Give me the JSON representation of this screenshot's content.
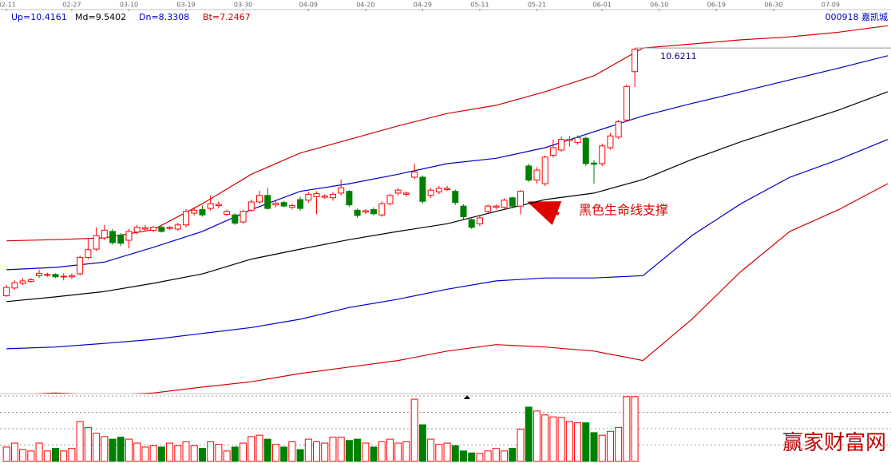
{
  "header": {
    "indicators": [
      {
        "text": "Up=10.4161",
        "color": "#0000c8"
      },
      {
        "text": "Md=9.5402",
        "color": "#000000"
      },
      {
        "text": "Dn=8.3308",
        "color": "#0000c8"
      },
      {
        "text": "Bt=7.2467",
        "color": "#c80000"
      }
    ],
    "stock": "000918 嘉凯城"
  },
  "chart_data": {
    "type": "candlestick",
    "xlim": [
      -0.8,
      108.4
    ],
    "xticks": [
      {
        "value": 0,
        "label": "02-11"
      },
      {
        "value": 8,
        "label": "02-27"
      },
      {
        "value": 15,
        "label": "03-10"
      },
      {
        "value": 22,
        "label": "03-19"
      },
      {
        "value": 29,
        "label": "03-30"
      },
      {
        "value": 37,
        "label": "04-09"
      },
      {
        "value": 44,
        "label": "04-20"
      },
      {
        "value": 51,
        "label": "04-29"
      },
      {
        "value": 58,
        "label": "05-11"
      },
      {
        "value": 65,
        "label": "05-21"
      },
      {
        "value": 73,
        "label": "06-01"
      },
      {
        "value": 80,
        "label": "06-10"
      },
      {
        "value": 87,
        "label": "06-19"
      },
      {
        "value": 94,
        "label": "06-30"
      },
      {
        "value": 101,
        "label": "07-09"
      }
    ],
    "ylim": [
      4.76,
      11.3
    ],
    "up_color": "#ff0000",
    "down_color": "#008000",
    "open": [
      6.42,
      6.55,
      6.63,
      6.66,
      6.76,
      6.77,
      6.78,
      6.74,
      6.74,
      6.79,
      7.07,
      7.21,
      7.4,
      7.51,
      7.45,
      7.36,
      7.5,
      7.55,
      7.53,
      7.58,
      7.56,
      7.55,
      7.62,
      7.82,
      7.88,
      7.9,
      7.95,
      7.8,
      7.79,
      7.67,
      7.87,
      8.01,
      8.12,
      7.96,
      8.0,
      7.92,
      8.05,
      8.04,
      8.1,
      8.09,
      8.08,
      8.16,
      8.19,
      7.87,
      7.84,
      7.88,
      7.79,
      7.98,
      8.16,
      8.14,
      8.43,
      8.43,
      8.12,
      8.18,
      8.22,
      8.19,
      7.94,
      7.71,
      7.64,
      7.85,
      7.92,
      7.92,
      8.08,
      7.94,
      8.62,
      8.38,
      8.32,
      8.8,
      8.89,
      9.05,
      9.02,
      9.09,
      8.67,
      8.66,
      8.93,
      9.11,
      9.4,
      10.22
    ],
    "close": [
      6.56,
      6.64,
      6.67,
      6.69,
      6.8,
      6.78,
      6.74,
      6.75,
      6.76,
      7.07,
      7.2,
      7.44,
      7.53,
      7.32,
      7.31,
      7.51,
      7.58,
      7.57,
      7.58,
      7.51,
      7.58,
      7.62,
      7.85,
      7.87,
      7.79,
      7.98,
      7.97,
      7.85,
      7.65,
      7.85,
      8.01,
      8.12,
      7.9,
      7.99,
      7.94,
      7.95,
      7.9,
      8.14,
      8.15,
      8.11,
      8.14,
      8.25,
      7.96,
      7.78,
      7.86,
      7.81,
      7.98,
      8.12,
      8.21,
      8.16,
      8.52,
      8.02,
      8.21,
      8.24,
      8.24,
      8.0,
      7.76,
      7.58,
      7.74,
      7.94,
      7.94,
      8.04,
      7.94,
      8.19,
      8.38,
      8.55,
      8.77,
      8.93,
      9.07,
      9.07,
      9.1,
      8.66,
      8.65,
      8.96,
      9.13,
      9.37,
      9.97,
      10.6
    ],
    "high": [
      6.6,
      6.68,
      6.72,
      6.72,
      6.86,
      6.81,
      6.8,
      6.8,
      6.8,
      7.1,
      7.38,
      7.58,
      7.62,
      7.55,
      7.48,
      7.55,
      7.62,
      7.62,
      7.6,
      7.62,
      7.6,
      7.66,
      7.89,
      7.92,
      7.95,
      8.12,
      8.02,
      7.88,
      7.82,
      7.88,
      8.05,
      8.2,
      8.25,
      8.05,
      8.03,
      7.98,
      8.1,
      8.18,
      8.19,
      8.14,
      8.18,
      8.39,
      8.21,
      7.9,
      7.89,
      7.92,
      8.02,
      8.15,
      8.25,
      8.19,
      8.66,
      8.46,
      8.25,
      8.28,
      8.28,
      8.22,
      7.97,
      7.73,
      7.78,
      7.97,
      7.97,
      8.07,
      8.1,
      8.21,
      8.66,
      8.6,
      8.8,
      9.07,
      9.12,
      9.13,
      9.14,
      9.12,
      8.72,
      9.0,
      9.18,
      9.4,
      10.0,
      10.6211
    ],
    "low": [
      6.4,
      6.52,
      6.6,
      6.64,
      6.72,
      6.74,
      6.72,
      6.68,
      6.7,
      6.76,
      7.04,
      7.18,
      7.36,
      7.28,
      7.26,
      7.22,
      7.46,
      7.52,
      7.5,
      7.49,
      7.53,
      7.52,
      7.58,
      7.78,
      7.76,
      7.86,
      7.9,
      7.77,
      7.62,
      7.64,
      7.84,
      7.98,
      7.88,
      7.92,
      7.92,
      7.88,
      7.86,
      8.0,
      7.8,
      8.06,
      8.03,
      8.12,
      7.93,
      7.74,
      7.8,
      7.78,
      7.76,
      7.95,
      8.12,
      8.1,
      8.4,
      7.98,
      8.08,
      8.14,
      8.2,
      7.96,
      7.72,
      7.55,
      7.6,
      7.82,
      7.88,
      7.89,
      7.9,
      7.8,
      8.35,
      8.32,
      8.28,
      8.76,
      8.86,
      8.95,
      8.98,
      8.62,
      8.32,
      8.62,
      8.9,
      9.08,
      9.37,
      9.96
    ],
    "high_label": "10.6211",
    "lines": {
      "x": [
        0,
        6,
        12,
        18,
        24,
        30,
        36,
        42,
        48,
        54,
        60,
        66,
        72,
        78,
        84,
        90,
        96,
        102,
        108
      ],
      "series": [
        {
          "color": "#d40000",
          "values": [
            7.35,
            7.37,
            7.4,
            7.54,
            7.98,
            8.48,
            8.84,
            9.07,
            9.3,
            9.51,
            9.65,
            9.88,
            10.15,
            10.62,
            10.69,
            10.76,
            10.81,
            10.89,
            11.0
          ]
        },
        {
          "color": "#0000c8",
          "values": [
            6.86,
            6.9,
            6.99,
            7.24,
            7.51,
            7.88,
            8.19,
            8.32,
            8.48,
            8.66,
            8.75,
            8.93,
            9.2,
            9.47,
            9.68,
            9.88,
            10.08,
            10.28,
            10.49
          ]
        },
        {
          "color": "#000000",
          "values": [
            6.32,
            6.4,
            6.49,
            6.63,
            6.79,
            7.04,
            7.21,
            7.37,
            7.51,
            7.64,
            7.85,
            8.05,
            8.16,
            8.39,
            8.73,
            9.03,
            9.3,
            9.57,
            9.88
          ]
        },
        {
          "color": "#0000c8",
          "values": [
            5.52,
            5.55,
            5.61,
            5.68,
            5.78,
            5.88,
            6.02,
            6.22,
            6.36,
            6.53,
            6.67,
            6.72,
            6.72,
            6.76,
            7.44,
            7.98,
            8.43,
            8.73,
            9.07
          ]
        },
        {
          "color": "#d40000",
          "values": [
            4.73,
            4.77,
            4.73,
            4.77,
            4.87,
            4.96,
            5.1,
            5.21,
            5.32,
            5.48,
            5.59,
            5.55,
            5.48,
            5.32,
            6.02,
            6.83,
            7.51,
            7.88,
            8.32
          ]
        }
      ]
    },
    "volume": {
      "ylim": [
        0,
        100
      ],
      "yticks": [
        25,
        50,
        75,
        100
      ],
      "values": [
        22,
        28,
        18,
        16,
        28,
        16,
        20,
        16,
        20,
        61,
        52,
        43,
        38,
        34,
        37,
        34,
        28,
        22,
        24,
        22,
        28,
        24,
        30,
        24,
        20,
        30,
        26,
        16,
        22,
        28,
        38,
        40,
        34,
        26,
        22,
        30,
        18,
        34,
        30,
        28,
        37,
        37,
        32,
        34,
        28,
        22,
        30,
        34,
        28,
        30,
        95,
        56,
        34,
        26,
        28,
        24,
        16,
        13,
        12,
        16,
        20,
        16,
        20,
        49,
        83,
        77,
        71,
        68,
        67,
        61,
        59,
        59,
        44,
        40,
        46,
        52,
        99,
        99
      ]
    },
    "annotation": {
      "text": "黑色生命线支撑",
      "color": "#e00000"
    }
  },
  "watermark": "赢家财富网"
}
